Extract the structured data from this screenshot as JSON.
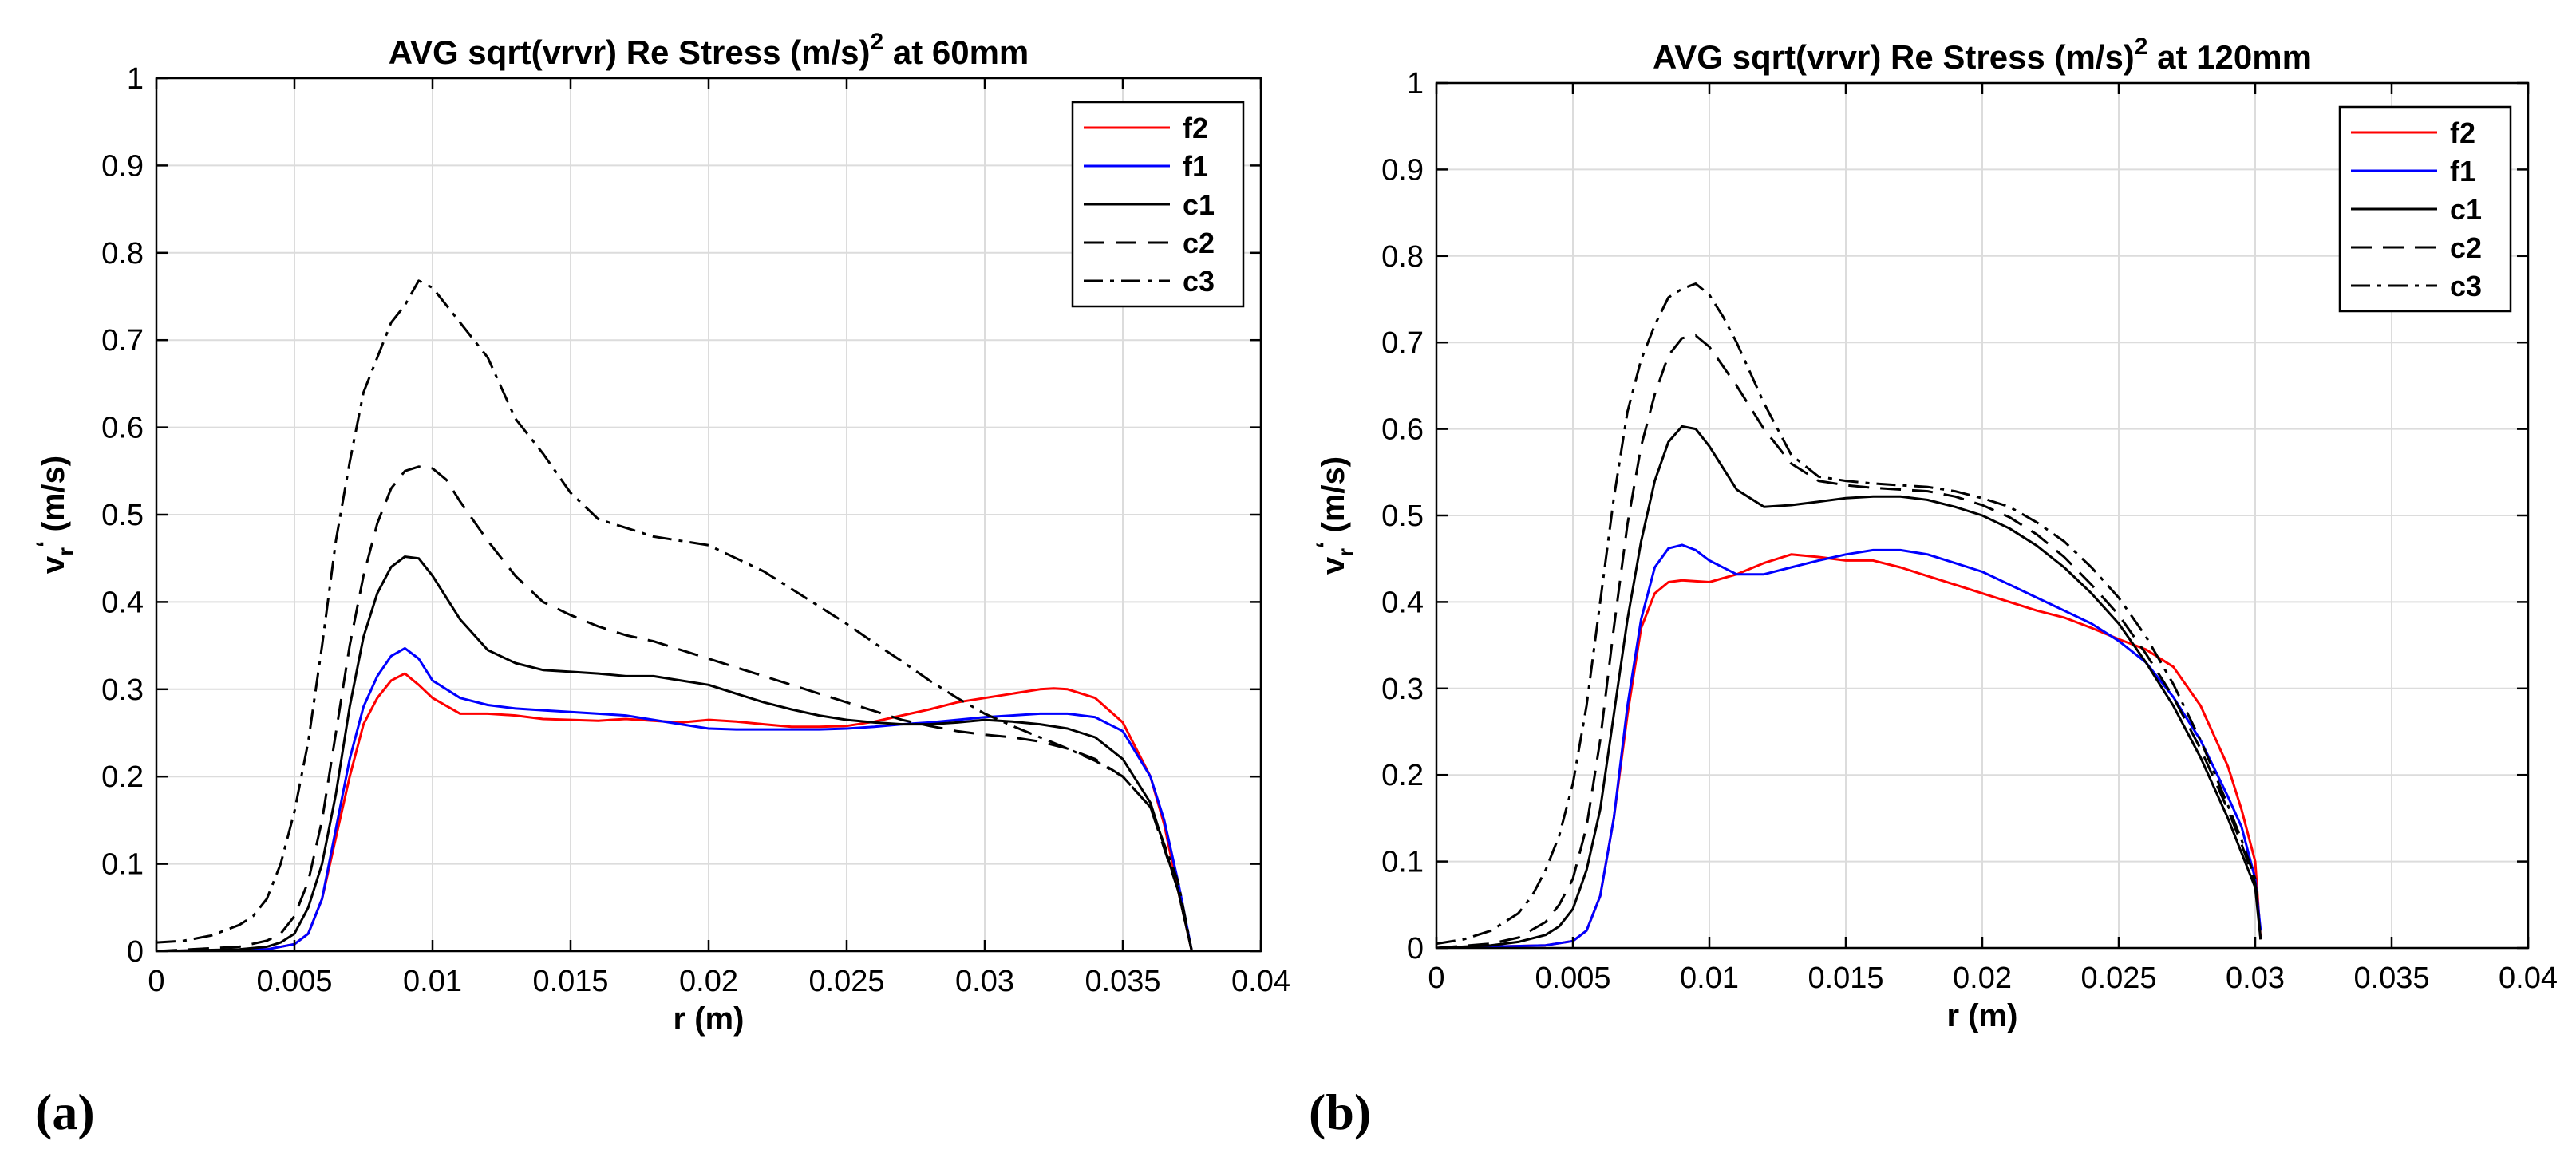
{
  "chart_data": [
    {
      "type": "line",
      "panel_label": "(a)",
      "title": "AVG sqrt(vrvr) Re Stress (m/s)",
      "title_superscript": "2",
      "title_suffix": " at 60mm",
      "xlabel": "r (m)",
      "ylabel_main": "v",
      "ylabel_sub": "r",
      "ylabel_prime": "‘",
      "ylabel_units": " (m/s)",
      "xlim": [
        0,
        0.04
      ],
      "ylim": [
        0,
        1
      ],
      "xticks": [
        0,
        0.005,
        0.01,
        0.015,
        0.02,
        0.025,
        0.03,
        0.035,
        0.04
      ],
      "xtick_labels": [
        "0",
        "0.005",
        "0.01",
        "0.015",
        "0.02",
        "0.025",
        "0.03",
        "0.035",
        "0.04"
      ],
      "yticks": [
        0,
        0.1,
        0.2,
        0.3,
        0.4,
        0.5,
        0.6,
        0.7,
        0.8,
        0.9,
        1
      ],
      "ytick_labels": [
        "0",
        "0.1",
        "0.2",
        "0.3",
        "0.4",
        "0.5",
        "0.6",
        "0.7",
        "0.8",
        "0.9",
        "1"
      ],
      "grid": true,
      "legend_position": "top-right",
      "series": [
        {
          "name": "f2",
          "color": "#ff0000",
          "dash": "solid",
          "x": [
            0,
            0.004,
            0.005,
            0.0055,
            0.006,
            0.0065,
            0.007,
            0.0075,
            0.008,
            0.0085,
            0.009,
            0.0095,
            0.01,
            0.011,
            0.012,
            0.013,
            0.014,
            0.015,
            0.016,
            0.017,
            0.018,
            0.019,
            0.02,
            0.021,
            0.022,
            0.023,
            0.024,
            0.025,
            0.026,
            0.027,
            0.028,
            0.029,
            0.03,
            0.031,
            0.032,
            0.0325,
            0.033,
            0.034,
            0.035,
            0.036,
            0.0365,
            0.037,
            0.0375
          ],
          "y": [
            0,
            0.002,
            0.008,
            0.02,
            0.06,
            0.13,
            0.2,
            0.26,
            0.29,
            0.31,
            0.318,
            0.305,
            0.29,
            0.272,
            0.272,
            0.27,
            0.266,
            0.265,
            0.264,
            0.266,
            0.264,
            0.262,
            0.265,
            0.263,
            0.26,
            0.257,
            0.257,
            0.258,
            0.263,
            0.27,
            0.277,
            0.285,
            0.29,
            0.295,
            0.3,
            0.301,
            0.3,
            0.29,
            0.262,
            0.2,
            0.145,
            0.07,
            0
          ]
        },
        {
          "name": "f1",
          "color": "#0000ff",
          "dash": "solid",
          "x": [
            0,
            0.004,
            0.005,
            0.0055,
            0.006,
            0.0065,
            0.007,
            0.0075,
            0.008,
            0.0085,
            0.009,
            0.0095,
            0.01,
            0.011,
            0.012,
            0.013,
            0.014,
            0.015,
            0.016,
            0.017,
            0.018,
            0.019,
            0.02,
            0.021,
            0.022,
            0.023,
            0.024,
            0.025,
            0.026,
            0.027,
            0.028,
            0.029,
            0.03,
            0.031,
            0.032,
            0.033,
            0.034,
            0.035,
            0.036,
            0.0365,
            0.037,
            0.0375
          ],
          "y": [
            0,
            0.002,
            0.008,
            0.02,
            0.06,
            0.14,
            0.22,
            0.28,
            0.315,
            0.338,
            0.347,
            0.335,
            0.31,
            0.29,
            0.282,
            0.278,
            0.276,
            0.274,
            0.272,
            0.27,
            0.265,
            0.26,
            0.255,
            0.254,
            0.254,
            0.254,
            0.254,
            0.255,
            0.257,
            0.26,
            0.262,
            0.265,
            0.268,
            0.27,
            0.272,
            0.272,
            0.268,
            0.252,
            0.2,
            0.15,
            0.08,
            0
          ]
        },
        {
          "name": "c1",
          "color": "#000000",
          "dash": "solid",
          "x": [
            0,
            0.003,
            0.004,
            0.0045,
            0.005,
            0.0055,
            0.006,
            0.0065,
            0.007,
            0.0075,
            0.008,
            0.0085,
            0.009,
            0.0095,
            0.01,
            0.011,
            0.012,
            0.013,
            0.014,
            0.015,
            0.016,
            0.017,
            0.018,
            0.019,
            0.02,
            0.021,
            0.022,
            0.023,
            0.024,
            0.025,
            0.026,
            0.027,
            0.028,
            0.029,
            0.03,
            0.031,
            0.032,
            0.033,
            0.034,
            0.035,
            0.036,
            0.037,
            0.0375
          ],
          "y": [
            0,
            0.002,
            0.005,
            0.01,
            0.02,
            0.05,
            0.1,
            0.18,
            0.28,
            0.36,
            0.41,
            0.44,
            0.452,
            0.45,
            0.43,
            0.38,
            0.345,
            0.33,
            0.322,
            0.32,
            0.318,
            0.315,
            0.315,
            0.31,
            0.305,
            0.295,
            0.285,
            0.277,
            0.27,
            0.265,
            0.262,
            0.26,
            0.26,
            0.262,
            0.265,
            0.263,
            0.26,
            0.255,
            0.245,
            0.22,
            0.17,
            0.07,
            0
          ]
        },
        {
          "name": "c2",
          "color": "#000000",
          "dash": "dashed",
          "x": [
            0,
            0.003,
            0.004,
            0.0045,
            0.005,
            0.0055,
            0.006,
            0.0065,
            0.007,
            0.0075,
            0.008,
            0.0085,
            0.009,
            0.0095,
            0.01,
            0.0105,
            0.011,
            0.012,
            0.013,
            0.014,
            0.015,
            0.016,
            0.017,
            0.018,
            0.019,
            0.02,
            0.021,
            0.022,
            0.023,
            0.024,
            0.025,
            0.026,
            0.027,
            0.028,
            0.029,
            0.03,
            0.031,
            0.032,
            0.033,
            0.034,
            0.035,
            0.036,
            0.037,
            0.0375
          ],
          "y": [
            0,
            0.005,
            0.012,
            0.02,
            0.04,
            0.08,
            0.15,
            0.25,
            0.35,
            0.43,
            0.49,
            0.53,
            0.55,
            0.555,
            0.553,
            0.54,
            0.515,
            0.47,
            0.43,
            0.4,
            0.385,
            0.372,
            0.362,
            0.355,
            0.345,
            0.335,
            0.325,
            0.315,
            0.305,
            0.295,
            0.285,
            0.275,
            0.265,
            0.258,
            0.252,
            0.248,
            0.245,
            0.24,
            0.232,
            0.22,
            0.2,
            0.165,
            0.07,
            0
          ]
        },
        {
          "name": "c3",
          "color": "#000000",
          "dash": "dashdot",
          "x": [
            0,
            0.001,
            0.002,
            0.003,
            0.0035,
            0.004,
            0.0045,
            0.005,
            0.0055,
            0.006,
            0.0065,
            0.007,
            0.0075,
            0.008,
            0.0085,
            0.009,
            0.0095,
            0.01,
            0.011,
            0.012,
            0.013,
            0.014,
            0.015,
            0.016,
            0.017,
            0.018,
            0.019,
            0.02,
            0.021,
            0.022,
            0.023,
            0.024,
            0.025,
            0.026,
            0.027,
            0.028,
            0.029,
            0.03,
            0.031,
            0.032,
            0.033,
            0.034,
            0.035,
            0.036,
            0.037,
            0.0375
          ],
          "y": [
            0.01,
            0.012,
            0.018,
            0.03,
            0.04,
            0.06,
            0.1,
            0.16,
            0.24,
            0.35,
            0.47,
            0.56,
            0.64,
            0.68,
            0.72,
            0.74,
            0.768,
            0.76,
            0.72,
            0.68,
            0.61,
            0.57,
            0.525,
            0.495,
            0.485,
            0.475,
            0.47,
            0.465,
            0.45,
            0.435,
            0.415,
            0.395,
            0.375,
            0.353,
            0.332,
            0.31,
            0.29,
            0.272,
            0.258,
            0.245,
            0.232,
            0.218,
            0.2,
            0.165,
            0.08,
            0
          ]
        }
      ]
    },
    {
      "type": "line",
      "panel_label": "(b)",
      "title": "AVG sqrt(vrvr) Re Stress (m/s)",
      "title_superscript": "2",
      "title_suffix": " at 120mm",
      "xlabel": "r (m)",
      "ylabel_main": "v",
      "ylabel_sub": "r",
      "ylabel_prime": "‘",
      "ylabel_units": " (m/s)",
      "xlim": [
        0,
        0.04
      ],
      "ylim": [
        0,
        1
      ],
      "xticks": [
        0,
        0.005,
        0.01,
        0.015,
        0.02,
        0.025,
        0.03,
        0.035,
        0.04
      ],
      "xtick_labels": [
        "0",
        "0.005",
        "0.01",
        "0.015",
        "0.02",
        "0.025",
        "0.03",
        "0.035",
        "0.04"
      ],
      "yticks": [
        0,
        0.1,
        0.2,
        0.3,
        0.4,
        0.5,
        0.6,
        0.7,
        0.8,
        0.9,
        1
      ],
      "ytick_labels": [
        "0",
        "0.1",
        "0.2",
        "0.3",
        "0.4",
        "0.5",
        "0.6",
        "0.7",
        "0.8",
        "0.9",
        "1"
      ],
      "grid": true,
      "legend_position": "top-right",
      "series": [
        {
          "name": "f2",
          "color": "#ff0000",
          "dash": "solid",
          "x": [
            0,
            0.004,
            0.005,
            0.0055,
            0.006,
            0.0065,
            0.007,
            0.0075,
            0.008,
            0.0085,
            0.009,
            0.0095,
            0.01,
            0.011,
            0.012,
            0.013,
            0.014,
            0.015,
            0.016,
            0.017,
            0.018,
            0.019,
            0.02,
            0.021,
            0.022,
            0.023,
            0.024,
            0.025,
            0.026,
            0.027,
            0.028,
            0.029,
            0.0295,
            0.03,
            0.0302
          ],
          "y": [
            0,
            0.003,
            0.008,
            0.02,
            0.06,
            0.15,
            0.27,
            0.37,
            0.41,
            0.423,
            0.425,
            0.424,
            0.423,
            0.432,
            0.445,
            0.455,
            0.452,
            0.448,
            0.448,
            0.44,
            0.43,
            0.42,
            0.41,
            0.4,
            0.39,
            0.382,
            0.37,
            0.357,
            0.345,
            0.325,
            0.28,
            0.21,
            0.16,
            0.1,
            0.01
          ]
        },
        {
          "name": "f1",
          "color": "#0000ff",
          "dash": "solid",
          "x": [
            0,
            0.004,
            0.005,
            0.0055,
            0.006,
            0.0065,
            0.007,
            0.0075,
            0.008,
            0.0085,
            0.009,
            0.0095,
            0.01,
            0.011,
            0.012,
            0.013,
            0.014,
            0.015,
            0.016,
            0.017,
            0.018,
            0.019,
            0.02,
            0.021,
            0.022,
            0.023,
            0.024,
            0.025,
            0.026,
            0.027,
            0.028,
            0.029,
            0.0295,
            0.03,
            0.0302
          ],
          "y": [
            0,
            0.003,
            0.008,
            0.02,
            0.06,
            0.15,
            0.28,
            0.38,
            0.44,
            0.462,
            0.466,
            0.46,
            0.448,
            0.432,
            0.432,
            0.44,
            0.448,
            0.455,
            0.46,
            0.46,
            0.455,
            0.445,
            0.435,
            0.42,
            0.405,
            0.39,
            0.375,
            0.355,
            0.33,
            0.29,
            0.24,
            0.175,
            0.14,
            0.08,
            0.02
          ]
        },
        {
          "name": "c1",
          "color": "#000000",
          "dash": "solid",
          "x": [
            0,
            0.002,
            0.003,
            0.004,
            0.0045,
            0.005,
            0.0055,
            0.006,
            0.0065,
            0.007,
            0.0075,
            0.008,
            0.0085,
            0.009,
            0.0095,
            0.01,
            0.011,
            0.012,
            0.013,
            0.014,
            0.015,
            0.016,
            0.017,
            0.018,
            0.019,
            0.02,
            0.021,
            0.022,
            0.023,
            0.024,
            0.025,
            0.026,
            0.027,
            0.028,
            0.029,
            0.0295,
            0.03,
            0.0302
          ],
          "y": [
            0,
            0.003,
            0.007,
            0.015,
            0.025,
            0.045,
            0.09,
            0.16,
            0.27,
            0.38,
            0.47,
            0.54,
            0.585,
            0.603,
            0.6,
            0.58,
            0.53,
            0.51,
            0.512,
            0.516,
            0.52,
            0.522,
            0.522,
            0.518,
            0.51,
            0.5,
            0.485,
            0.465,
            0.44,
            0.41,
            0.375,
            0.33,
            0.28,
            0.22,
            0.15,
            0.11,
            0.07,
            0.01
          ]
        },
        {
          "name": "c2",
          "color": "#000000",
          "dash": "dashed",
          "x": [
            0,
            0.002,
            0.003,
            0.004,
            0.0045,
            0.005,
            0.0055,
            0.006,
            0.0065,
            0.007,
            0.0075,
            0.008,
            0.0085,
            0.009,
            0.0095,
            0.01,
            0.011,
            0.012,
            0.013,
            0.014,
            0.015,
            0.016,
            0.017,
            0.018,
            0.019,
            0.02,
            0.021,
            0.022,
            0.023,
            0.024,
            0.025,
            0.026,
            0.027,
            0.028,
            0.029,
            0.0295,
            0.03,
            0.0302
          ],
          "y": [
            0,
            0.005,
            0.012,
            0.03,
            0.05,
            0.08,
            0.14,
            0.24,
            0.37,
            0.49,
            0.58,
            0.64,
            0.685,
            0.705,
            0.708,
            0.695,
            0.65,
            0.6,
            0.56,
            0.54,
            0.535,
            0.532,
            0.53,
            0.528,
            0.522,
            0.512,
            0.498,
            0.478,
            0.452,
            0.42,
            0.385,
            0.34,
            0.29,
            0.23,
            0.16,
            0.12,
            0.075,
            0.01
          ]
        },
        {
          "name": "c3",
          "color": "#000000",
          "dash": "dashdot",
          "x": [
            0,
            0.001,
            0.002,
            0.003,
            0.0035,
            0.004,
            0.0045,
            0.005,
            0.0055,
            0.006,
            0.0065,
            0.007,
            0.0075,
            0.008,
            0.0085,
            0.009,
            0.0095,
            0.01,
            0.0105,
            0.011,
            0.012,
            0.013,
            0.014,
            0.015,
            0.016,
            0.017,
            0.018,
            0.019,
            0.02,
            0.021,
            0.022,
            0.023,
            0.024,
            0.025,
            0.026,
            0.027,
            0.028,
            0.029,
            0.0295,
            0.03,
            0.0302
          ],
          "y": [
            0.005,
            0.01,
            0.02,
            0.04,
            0.06,
            0.09,
            0.13,
            0.19,
            0.28,
            0.4,
            0.52,
            0.62,
            0.68,
            0.72,
            0.752,
            0.762,
            0.768,
            0.755,
            0.73,
            0.7,
            0.63,
            0.57,
            0.545,
            0.54,
            0.537,
            0.535,
            0.533,
            0.528,
            0.52,
            0.51,
            0.492,
            0.47,
            0.44,
            0.405,
            0.36,
            0.305,
            0.24,
            0.165,
            0.125,
            0.08,
            0.01
          ]
        }
      ]
    }
  ]
}
